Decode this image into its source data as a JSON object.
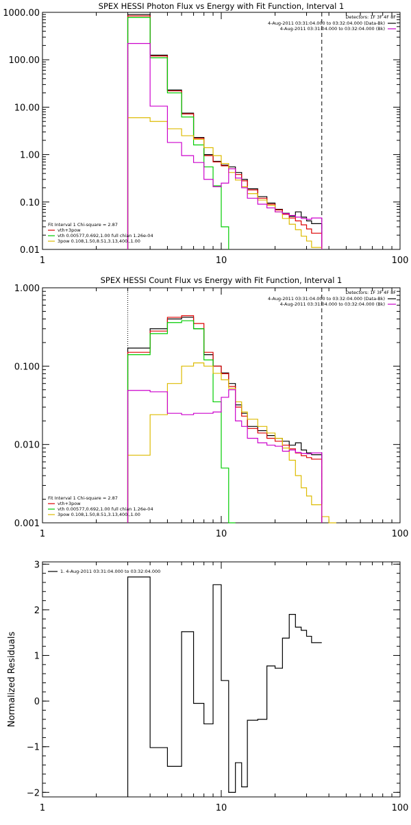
{
  "chart_data": [
    {
      "type": "line",
      "title": "SPEX HESSI Photon Flux vs Energy with Fit Function, Interval 1",
      "xscale": "log",
      "yscale": "log",
      "xlim": [
        1,
        100
      ],
      "ylim": [
        0.01,
        1000
      ],
      "xticks": [
        "1",
        "10",
        "100"
      ],
      "yticks": [
        "1000.00",
        "100.00",
        "10.00",
        "1.00",
        "0.10",
        "0.01"
      ],
      "ytick_values": [
        1000,
        100,
        10,
        1,
        0.1,
        0.01
      ],
      "detectors": "Detectors: 1F 3F 4F 8F",
      "legend_right": [
        {
          "label": "4-Aug-2011 03:31:04.000 to 03:32:04.000 (Data-Bk)",
          "color": "#000000"
        },
        {
          "label": "4-Aug-2011 03:31:04.000 to 03:32:04.000 (Bk)",
          "color": "#cc00cc"
        }
      ],
      "fit_label": "Fit Interval 1   Chi-square = 2.87",
      "legend_left": [
        {
          "label": "vth+3pow",
          "color": "#dd0000"
        },
        {
          "label": "vth 0.00577,0.692,1.00   full chian 1.26e-04",
          "color": "#00cc00"
        },
        {
          "label": "3pow 0.108,1.50,8.51,3.13,400.,1.00",
          "color": "#ddbb00"
        }
      ],
      "markers": {
        "dotted_x": 3,
        "dashed_x": 36.5
      },
      "bin_edges": [
        3,
        4,
        5,
        6,
        7,
        8,
        9,
        10,
        11,
        12,
        13,
        14,
        16,
        18,
        20,
        22,
        24,
        26,
        28,
        30,
        32,
        36.5
      ],
      "series": [
        {
          "name": "data",
          "color": "#000000",
          "values": [
            900,
            125,
            23,
            7.5,
            2.3,
            1.0,
            0.72,
            0.6,
            0.55,
            0.42,
            0.3,
            0.19,
            0.13,
            0.095,
            0.07,
            0.058,
            0.05,
            0.062,
            0.048,
            0.04,
            0.035
          ]
        },
        {
          "name": "vth+3pow",
          "color": "#dd0000",
          "values": [
            840,
            120,
            22,
            7.2,
            2.2,
            0.95,
            0.7,
            0.58,
            0.5,
            0.38,
            0.28,
            0.18,
            0.12,
            0.09,
            0.068,
            0.055,
            0.046,
            0.04,
            0.033,
            0.027,
            0.022
          ]
        },
        {
          "name": "vth",
          "color": "#00cc00",
          "values": [
            780,
            110,
            20,
            6.2,
            1.6,
            0.55,
            0.22,
            0.03
          ]
        },
        {
          "name": "3pow",
          "color": "#ddbb00",
          "values": [
            6,
            5,
            3.5,
            2.5,
            2.1,
            1.4,
            0.95,
            0.65,
            0.42,
            0.29,
            0.21,
            0.15,
            0.11,
            0.085,
            0.062,
            0.045,
            0.034,
            0.026,
            0.019,
            0.015,
            0.011
          ]
        },
        {
          "name": "Bk",
          "color": "#cc00cc",
          "values": [
            220,
            10.5,
            1.8,
            0.95,
            0.68,
            0.3,
            0.21,
            0.25,
            0.5,
            0.32,
            0.2,
            0.12,
            0.09,
            0.075,
            0.062,
            0.057,
            0.052,
            0.048,
            0.045,
            0.043,
            0.046
          ]
        }
      ]
    },
    {
      "type": "line",
      "title": "SPEX HESSI Count Flux vs Energy with Fit Function, Interval 1",
      "xscale": "log",
      "yscale": "log",
      "xlim": [
        1,
        100
      ],
      "ylim": [
        0.001,
        1
      ],
      "xticks": [
        "1",
        "10",
        "100"
      ],
      "yticks": [
        "1.000",
        "0.100",
        "0.010",
        "0.001"
      ],
      "ytick_values": [
        1,
        0.1,
        0.01,
        0.001
      ],
      "detectors": "Detectors: 1F 3F 4F 8F",
      "legend_right": [
        {
          "label": "4-Aug-2011 03:31:04.000 to 03:32:04.000 (Data-Bk)",
          "color": "#000000"
        },
        {
          "label": "4-Aug-2011 03:31:04.000 to 03:32:04.000 (Bk)",
          "color": "#cc00cc"
        }
      ],
      "fit_label": "Fit Interval 1   Chi-square = 2.87",
      "legend_left": [
        {
          "label": "vth+3pow",
          "color": "#dd0000"
        },
        {
          "label": "vth 0.00577,0.692,1.00   full chian 1.26e-04",
          "color": "#00cc00"
        },
        {
          "label": "3pow 0.108,1.50,8.51,3.13,400.,1.00",
          "color": "#ddbb00"
        }
      ],
      "markers": {
        "dotted_x": 3,
        "dashed_x": 36.5
      },
      "bin_edges": [
        3,
        4,
        5,
        6,
        7,
        8,
        9,
        10,
        11,
        12,
        13,
        14,
        16,
        18,
        20,
        22,
        24,
        26,
        28,
        30,
        32,
        36.5,
        40,
        44
      ],
      "series": [
        {
          "name": "data",
          "color": "#000000",
          "values": [
            0.17,
            0.3,
            0.4,
            0.42,
            0.3,
            0.14,
            0.1,
            0.082,
            0.06,
            0.032,
            0.025,
            0.017,
            0.015,
            0.013,
            0.012,
            0.011,
            0.0098,
            0.0105,
            0.0085,
            0.0078,
            0.0074
          ]
        },
        {
          "name": "vth+3pow",
          "color": "#dd0000",
          "values": [
            0.15,
            0.28,
            0.42,
            0.44,
            0.35,
            0.15,
            0.1,
            0.08,
            0.055,
            0.03,
            0.023,
            0.016,
            0.014,
            0.012,
            0.011,
            0.0098,
            0.0088,
            0.0078,
            0.0072,
            0.0068,
            0.0065
          ]
        },
        {
          "name": "vth",
          "color": "#00cc00",
          "values": [
            0.14,
            0.26,
            0.36,
            0.38,
            0.3,
            0.12,
            0.035,
            0.005,
            0.001
          ]
        },
        {
          "name": "3pow",
          "color": "#ddbb00",
          "values": [
            0.0073,
            0.024,
            0.06,
            0.1,
            0.11,
            0.1,
            0.081,
            0.067,
            0.052,
            0.035,
            0.026,
            0.021,
            0.017,
            0.014,
            0.012,
            0.009,
            0.0063,
            0.004,
            0.0028,
            0.0022,
            0.0017,
            0.0012,
            0.001
          ]
        },
        {
          "name": "Bk",
          "color": "#cc00cc",
          "values": [
            0.049,
            0.047,
            0.025,
            0.024,
            0.025,
            0.025,
            0.026,
            0.04,
            0.05,
            0.02,
            0.017,
            0.012,
            0.0105,
            0.0098,
            0.0095,
            0.0082,
            0.0085,
            0.0079,
            0.0077,
            0.0076,
            0.0078
          ]
        }
      ]
    },
    {
      "type": "line",
      "title": "",
      "xscale": "log",
      "yscale": "linear",
      "xlim": [
        1,
        100
      ],
      "ylim": [
        -2.1,
        3.05
      ],
      "xticks": [
        "1",
        "10",
        "100"
      ],
      "yticks": [
        "3",
        "2",
        "1",
        "0",
        "−1",
        "−2"
      ],
      "ytick_values": [
        3,
        2,
        1,
        0,
        -1,
        -2
      ],
      "ylabel": "Normalized Residuals",
      "legend_right": [],
      "legend_left": [
        {
          "label": "1.  4-Aug-2011 03:31:04.000 to 03:32:04.000",
          "color": "#000000"
        }
      ],
      "bin_edges": [
        3,
        4,
        5,
        6,
        7,
        8,
        9,
        10,
        11,
        12,
        13,
        14,
        16,
        18,
        20,
        22,
        24,
        26,
        28,
        30,
        32,
        36.5
      ],
      "series": [
        {
          "name": "residuals",
          "color": "#000000",
          "values": [
            2.72,
            -1.02,
            -1.43,
            1.52,
            -0.05,
            -0.5,
            2.55,
            0.45,
            -2.0,
            -1.35,
            -1.88,
            -0.42,
            -0.4,
            0.77,
            0.72,
            1.38,
            1.9,
            1.62,
            1.55,
            1.42,
            1.28
          ]
        }
      ]
    }
  ]
}
